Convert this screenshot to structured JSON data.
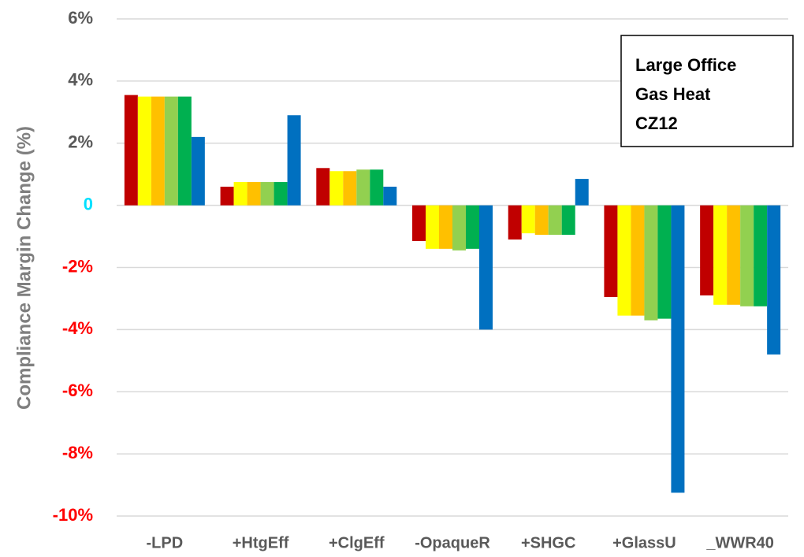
{
  "chart_data": {
    "type": "bar",
    "y_label": "Compliance Margin Change (%)",
    "annotation": [
      "Large Office",
      "Gas Heat",
      "CZ12"
    ],
    "categories": [
      "-LPD",
      "+HtgEff",
      "+ClgEff",
      "-OpaqueR",
      "+SHGC",
      "+GlassU",
      "_WWR40"
    ],
    "series": [
      {
        "color": "#c00000",
        "values": [
          3.55,
          0.6,
          1.2,
          -1.15,
          -1.1,
          -2.95,
          -2.9
        ]
      },
      {
        "color": "#ffff00",
        "values": [
          3.5,
          0.75,
          1.1,
          -1.4,
          -0.9,
          -3.55,
          -3.2
        ]
      },
      {
        "color": "#ffc000",
        "values": [
          3.5,
          0.75,
          1.1,
          -1.4,
          -0.95,
          -3.55,
          -3.2
        ]
      },
      {
        "color": "#92d050",
        "values": [
          3.5,
          0.75,
          1.15,
          -1.45,
          -0.95,
          -3.7,
          -3.25
        ]
      },
      {
        "color": "#00b050",
        "values": [
          3.5,
          0.75,
          1.15,
          -1.4,
          -0.95,
          -3.65,
          -3.25
        ]
      },
      {
        "color": "#0070c0",
        "values": [
          2.2,
          2.9,
          0.6,
          -4.0,
          0.85,
          -9.25,
          -4.8
        ]
      }
    ],
    "ylim": [
      -10,
      6
    ],
    "yticks": [
      {
        "value": -10,
        "label": "-10%"
      },
      {
        "value": -8,
        "label": "-8%"
      },
      {
        "value": -6,
        "label": "-6%"
      },
      {
        "value": -4,
        "label": "-4%"
      },
      {
        "value": -2,
        "label": "-2%"
      },
      0,
      {
        "value": 2,
        "label": "2%"
      },
      {
        "value": 4,
        "label": "4%"
      },
      {
        "value": 6,
        "label": "6%"
      }
    ],
    "grid": true
  }
}
